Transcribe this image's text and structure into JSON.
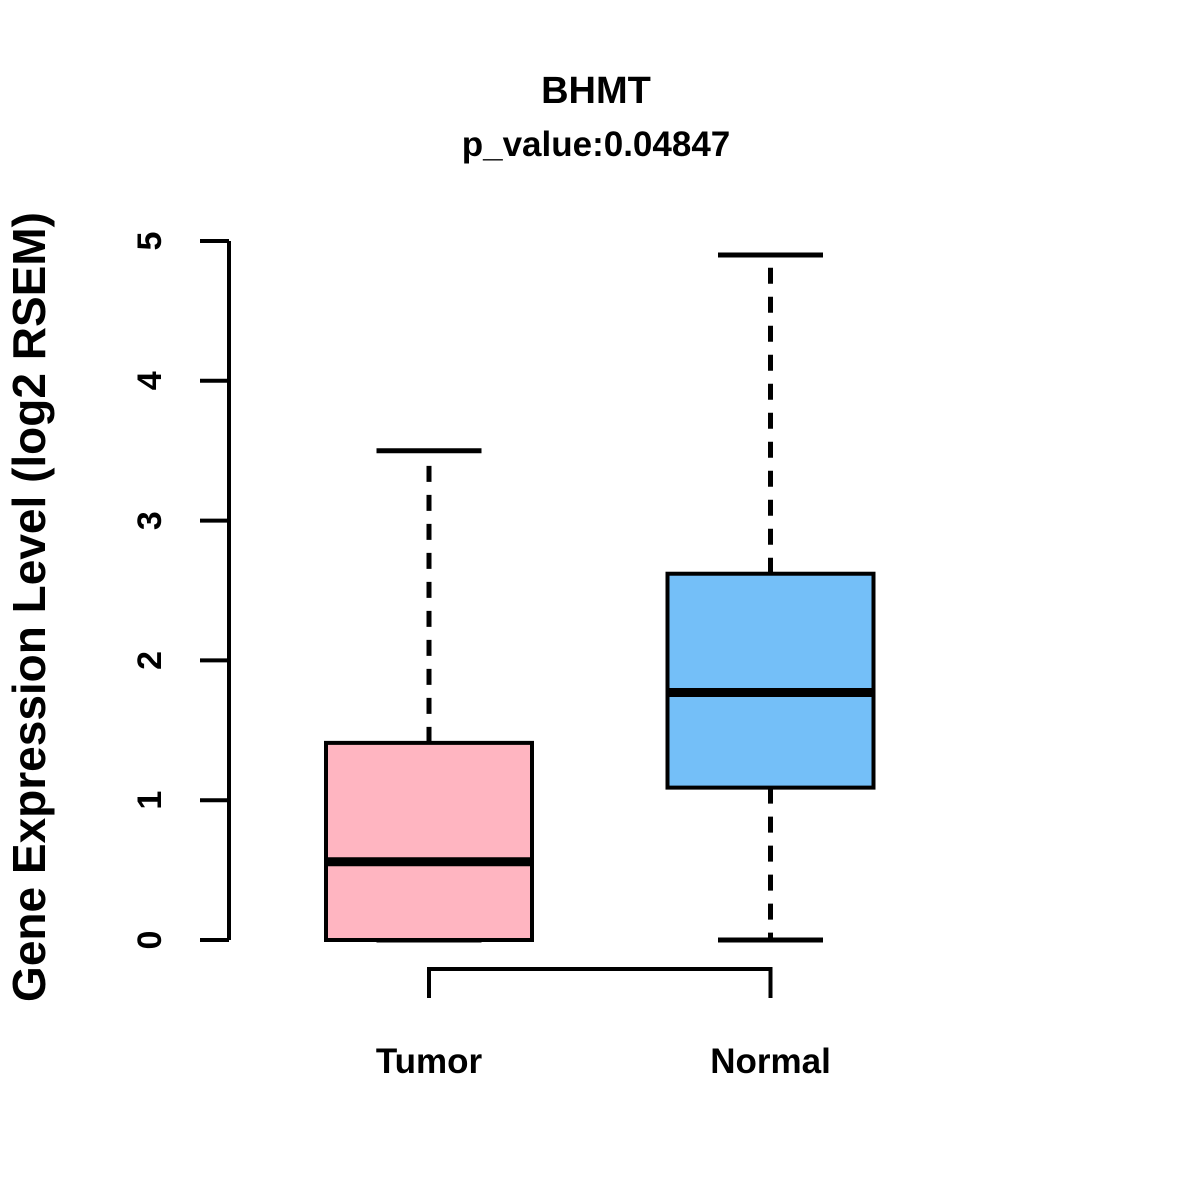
{
  "title": "BHMT",
  "subtitle": "p_value:0.04847",
  "ylabel": "Gene Expression Level (log2 RSEM)",
  "chart_data": {
    "type": "boxplot",
    "title": "BHMT",
    "subtitle": "p_value:0.04847",
    "ylabel": "Gene Expression Level (log2 RSEM)",
    "categories": [
      "Tumor",
      "Normal"
    ],
    "ylim": [
      0,
      5
    ],
    "yticks": [
      0,
      1,
      2,
      3,
      4,
      5
    ],
    "grid": false,
    "legend": "none",
    "series": [
      {
        "name": "Tumor",
        "color": "#FFB5C1",
        "whisker_low": 0,
        "q1": 0,
        "median": 0.56,
        "q3": 1.41,
        "whisker_high": 3.5
      },
      {
        "name": "Normal",
        "color": "#74BFF8",
        "whisker_low": 0,
        "q1": 1.09,
        "median": 1.77,
        "q3": 2.62,
        "whisker_high": 4.9
      }
    ],
    "colors": {
      "tumor_fill": "#FFB5C1",
      "normal_fill": "#74BFF8",
      "line": "#000000",
      "background": "#ffffff"
    }
  }
}
